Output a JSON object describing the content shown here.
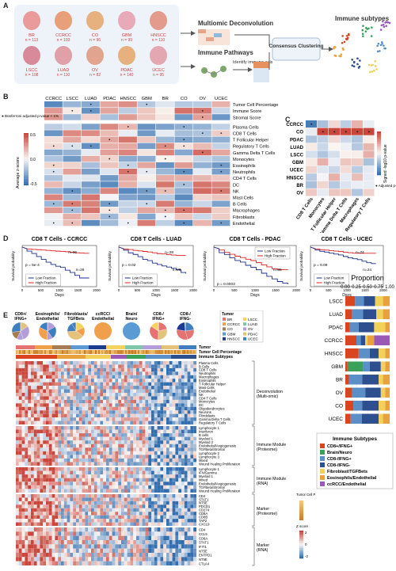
{
  "panel_letters": [
    "A",
    "B",
    "C",
    "D",
    "E",
    "F"
  ],
  "panelA": {
    "organs": [
      {
        "code": "BR",
        "n": "n = 113"
      },
      {
        "code": "CCRCC",
        "n": "n = 103"
      },
      {
        "code": "CO",
        "n": "n = 96"
      },
      {
        "code": "GBM",
        "n": "n = 99"
      },
      {
        "code": "HNSCC",
        "n": "n = 110"
      },
      {
        "code": "LSCC",
        "n": "n = 108"
      },
      {
        "code": "LUAD",
        "n": "n = 110"
      },
      {
        "code": "OV",
        "n": "n = 82"
      },
      {
        "code": "PDAC",
        "n": "n = 140"
      },
      {
        "code": "UCEC",
        "n": "n = 95"
      }
    ],
    "multiomic_title": "Multiomic Deconvolution",
    "pathways_title": "Immune Pathways",
    "identify_label": "Identify immune-axis",
    "consensus_label": "Consensus Clustering",
    "subtypes_title": "Immune subtypes"
  },
  "panelB": {
    "columns": [
      "CCRCC",
      "LSCC",
      "LUAD",
      "PDAC",
      "HNSCC",
      "GBM",
      "BR",
      "CO",
      "OV",
      "UCEC"
    ],
    "rows": [
      "Tumor Cell Percentage",
      "Immune Score",
      "Stromal Score",
      "Plasma Cells",
      "CD8 T Cells",
      "T Follicular Helper",
      "Regulatory T Cells",
      "Gamma Delta T Cells",
      "Monocytes",
      "Eosinophils",
      "Neutrophils",
      "CD4 T Cells",
      "DC",
      "NK",
      "Mast Cells",
      "B Cells",
      "Macrophages",
      "Fibroblasts",
      "Endothelial"
    ],
    "legend_note": "● Bonferroni adjusted p-value < 1%",
    "colorbar_label": "Average z-score",
    "colorbar_ticks": [
      "0.5",
      "0.0",
      "-0.5"
    ]
  },
  "panelC": {
    "rows": [
      "CCRCC",
      "CO",
      "PDAC",
      "LUAD",
      "LSCC",
      "GBM",
      "UCEC",
      "HNSCC",
      "BR",
      "OV"
    ],
    "columns": [
      "CD8 T Cells",
      "Monocytes",
      "T Follicular Helper",
      "Gamma Delta T Cells",
      "Macrophages",
      "Regulatory T Cells"
    ],
    "colorbar_label": "Signed -log10 p-value",
    "legend_note": "● Adjusted p-value <10%"
  },
  "panelD": {
    "plots": [
      {
        "title": "CD8 T Cells - CCRCC",
        "pval": "p = 5e-4",
        "n_high": "n=26",
        "n_low": "n=26",
        "xticks": [
          "0",
          "500",
          "1000",
          "1500",
          "2000"
        ]
      },
      {
        "title": "CD8 T Cells - LUAD",
        "pval": "p = 0.02",
        "n_high": "n=28",
        "n_low": "n=28",
        "xticks": [
          "0",
          "500",
          "1000",
          "1500",
          "2000"
        ]
      },
      {
        "title": "CD8 T Cells - PDAC",
        "pval": "p = 0.0003",
        "n_high": "n=35",
        "n_low": "n=35",
        "xticks": [
          "0",
          "500",
          "1000",
          "1500",
          "2000"
        ]
      },
      {
        "title": "CD8 T Cells - UCEC",
        "pval": "p = 0.09",
        "n_high": "n=24",
        "n_low": "n=24",
        "xticks": [
          "0",
          "500",
          "1000",
          "1500",
          "2000"
        ]
      }
    ],
    "ylabel": "Survival probability",
    "xlabel": "Days",
    "legend_low": "Low Fraction",
    "legend_high": "High Fraction"
  },
  "panelE": {
    "pies": [
      "CD8+/ IFNG+",
      "Eosinophils/ Endothelial",
      "Fibroblasts/ TGFBets",
      "ccRCC/ Endothelial",
      "Brain/ Neuro",
      "CD8-/ IFNG+",
      "CD8-/ IFNG-"
    ],
    "tumor_legend_title": "Tumor",
    "tumor_legend": [
      "BR",
      "CCRCC",
      "CO",
      "GBM",
      "HNSCC",
      "LSCC",
      "LUAD",
      "OV",
      "PDAC",
      "UCEC"
    ],
    "track_labels": [
      "Tumor",
      "Tumor Cell Percentage",
      "Immune Subtypes"
    ],
    "deconv_rows": [
      "Plasma Cells",
      "B Cells",
      "CD8 T Cells",
      "Neutrophils",
      "Macrophages",
      "Eosinophils",
      "T Follicular Helper",
      "Mast Cells",
      "Endothelial",
      "NK",
      "CD4 T Cells",
      "Monocytes",
      "DC",
      "Oligodendrocytes",
      "Neurons",
      "Fibroblasts",
      "Gamma Delta T Cells",
      "Regulatory T Cells"
    ],
    "immune_prot_rows": [
      "Lymphocyte 1",
      "Interferon",
      "B cells",
      "Myeloid 1",
      "Myeloid 2",
      "Endothelial/Angiogenesis",
      "TGFBeta/Stromal",
      "Lymphocyte 2",
      "Lymphocyte 3",
      "Mixed",
      "Wound Healing Proliferation"
    ],
    "immune_rna_rows": [
      "Lymphocyte 1",
      "IFN/Gamma",
      "Myeloid 1",
      "Mixed",
      "Endothelial/Angiogenesis",
      "TGFBeta/Stromal",
      "Wound Healing Proliferation"
    ],
    "marker_prot_rows": [
      "CD4",
      "STAT1",
      "NT5E",
      "PDCD1",
      "CD274",
      "CD8A",
      "CD8B",
      "TAP2",
      "CXCL9"
    ],
    "marker_rna_rows": [
      "CD4",
      "CCL5",
      "CD8A",
      "STAT1",
      "IFIT1",
      "NT5E",
      "ENTPD1",
      "NT5E",
      "CTLA4"
    ],
    "group_labels": [
      "Deconvolution (Multi-omic)",
      "Immune Module (Proteome)",
      "Immune Module (RNA)",
      "Marker (Proteome)",
      "Marker (RNA)"
    ],
    "tcp_legend": "Tumor Cell Percentage",
    "z_legend": "Z score",
    "z_ticks": [
      "2",
      "0",
      "-2"
    ]
  },
  "panelF": {
    "title": "Proportion",
    "ticks": [
      "0.00",
      "0.25",
      "0.50",
      "0.75",
      "1.00"
    ],
    "categories": [
      "LSCC",
      "LUAD",
      "PDAC",
      "CCRCC",
      "HNSCC",
      "GBM",
      "BR",
      "OV",
      "CO",
      "UCEC"
    ],
    "legend_title": "Immune Subtypes",
    "subtypes": [
      {
        "name": "CD8+/IFNG+",
        "color": "#d9451f"
      },
      {
        "name": "Brain/Neuro",
        "color": "#3aa05a"
      },
      {
        "name": "CD8-/IFNG+",
        "color": "#5a8fc7"
      },
      {
        "name": "CD8-/IFNG-",
        "color": "#2d4f8f"
      },
      {
        "name": "Fibroblast/TGFBets",
        "color": "#f1d15a"
      },
      {
        "name": "Eosinophils/Endothelial",
        "color": "#e9a23b"
      },
      {
        "name": "ccRCC/Endothelial",
        "color": "#9b59b6"
      }
    ]
  },
  "chart_data": {
    "type": "bar",
    "title": "Proportion",
    "categories": [
      "LSCC",
      "LUAD",
      "PDAC",
      "CCRCC",
      "HNSCC",
      "GBM",
      "BR",
      "OV",
      "CO",
      "UCEC"
    ],
    "series": [
      {
        "name": "CD8+/IFNG+",
        "values": [
          0.22,
          0.15,
          0.1,
          0.25,
          0.3,
          0.05,
          0.08,
          0.15,
          0.18,
          0.12
        ]
      },
      {
        "name": "Brain/Neuro",
        "values": [
          0.0,
          0.0,
          0.0,
          0.0,
          0.0,
          0.35,
          0.0,
          0.0,
          0.0,
          0.0
        ]
      },
      {
        "name": "CD8-/IFNG+",
        "values": [
          0.2,
          0.25,
          0.2,
          0.1,
          0.25,
          0.15,
          0.3,
          0.3,
          0.2,
          0.25
        ]
      },
      {
        "name": "CD8-/IFNG-",
        "values": [
          0.25,
          0.3,
          0.35,
          0.1,
          0.2,
          0.25,
          0.37,
          0.35,
          0.37,
          0.38
        ]
      },
      {
        "name": "Fibroblast/TGFBets",
        "values": [
          0.18,
          0.15,
          0.25,
          0.05,
          0.15,
          0.1,
          0.1,
          0.1,
          0.15,
          0.1
        ]
      },
      {
        "name": "Eosinophils/Endothelial",
        "values": [
          0.15,
          0.15,
          0.1,
          0.15,
          0.1,
          0.1,
          0.15,
          0.1,
          0.1,
          0.15
        ]
      },
      {
        "name": "ccRCC/Endothelial",
        "values": [
          0.0,
          0.0,
          0.0,
          0.35,
          0.0,
          0.0,
          0.0,
          0.0,
          0.0,
          0.0
        ]
      }
    ],
    "xlim": [
      0,
      1
    ]
  }
}
